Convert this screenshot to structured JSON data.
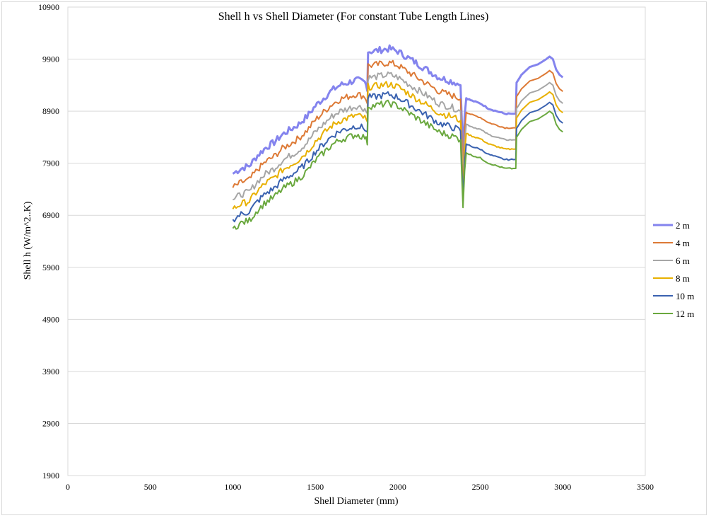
{
  "chart_data": {
    "type": "line",
    "title": "Shell h vs Shell Diameter (For constant Tube Length Lines)",
    "xlabel": "Shell Diameter (mm)",
    "ylabel": "Shell h (W/m^2..K)",
    "xlim": [
      0,
      3500
    ],
    "ylim": [
      1900,
      10900
    ],
    "xticks": [
      0,
      500,
      1000,
      1500,
      2000,
      2500,
      3000,
      3500
    ],
    "yticks": [
      1900,
      2900,
      3900,
      4900,
      5900,
      6900,
      7900,
      8900,
      9900,
      10900
    ],
    "grid": "horizontal",
    "legend_position": "right",
    "series": [
      {
        "name": "2 m",
        "color": "#8484ee"
      },
      {
        "name": "4 m",
        "color": "#dd7a36"
      },
      {
        "name": "6 m",
        "color": "#a6a6a6"
      },
      {
        "name": "8 m",
        "color": "#e8b000"
      },
      {
        "name": "10 m",
        "color": "#3a62b0"
      },
      {
        "name": "12 m",
        "color": "#6aa83e"
      }
    ],
    "x": [
      1000,
      1050,
      1100,
      1150,
      1200,
      1250,
      1300,
      1350,
      1400,
      1450,
      1500,
      1550,
      1600,
      1650,
      1700,
      1750,
      1800,
      1815,
      1820,
      1850,
      1900,
      1950,
      2000,
      2050,
      2100,
      2150,
      2200,
      2250,
      2300,
      2350,
      2380,
      2395,
      2405,
      2415,
      2450,
      2500,
      2550,
      2600,
      2650,
      2700,
      2715,
      2720,
      2750,
      2800,
      2850,
      2900,
      2920,
      2940,
      2960,
      2980,
      3000
    ],
    "base": [
      7700,
      7800,
      7850,
      8050,
      8200,
      8300,
      8450,
      8550,
      8650,
      8800,
      9000,
      9150,
      9300,
      9400,
      9450,
      9500,
      9450,
      9350,
      10050,
      10050,
      10080,
      10100,
      10050,
      9950,
      9850,
      9750,
      9650,
      9550,
      9500,
      9450,
      9400,
      8100,
      8800,
      9150,
      9100,
      9050,
      8950,
      8900,
      8850,
      8850,
      8850,
      9450,
      9600,
      9750,
      9800,
      9900,
      9950,
      9900,
      9700,
      9600,
      9550
    ],
    "offsets": [
      0,
      -270,
      -500,
      -680,
      -880,
      -1050
    ],
    "scale_tail": [
      1.0,
      1.0,
      1.0,
      1.0,
      1.0,
      1.0
    ]
  }
}
